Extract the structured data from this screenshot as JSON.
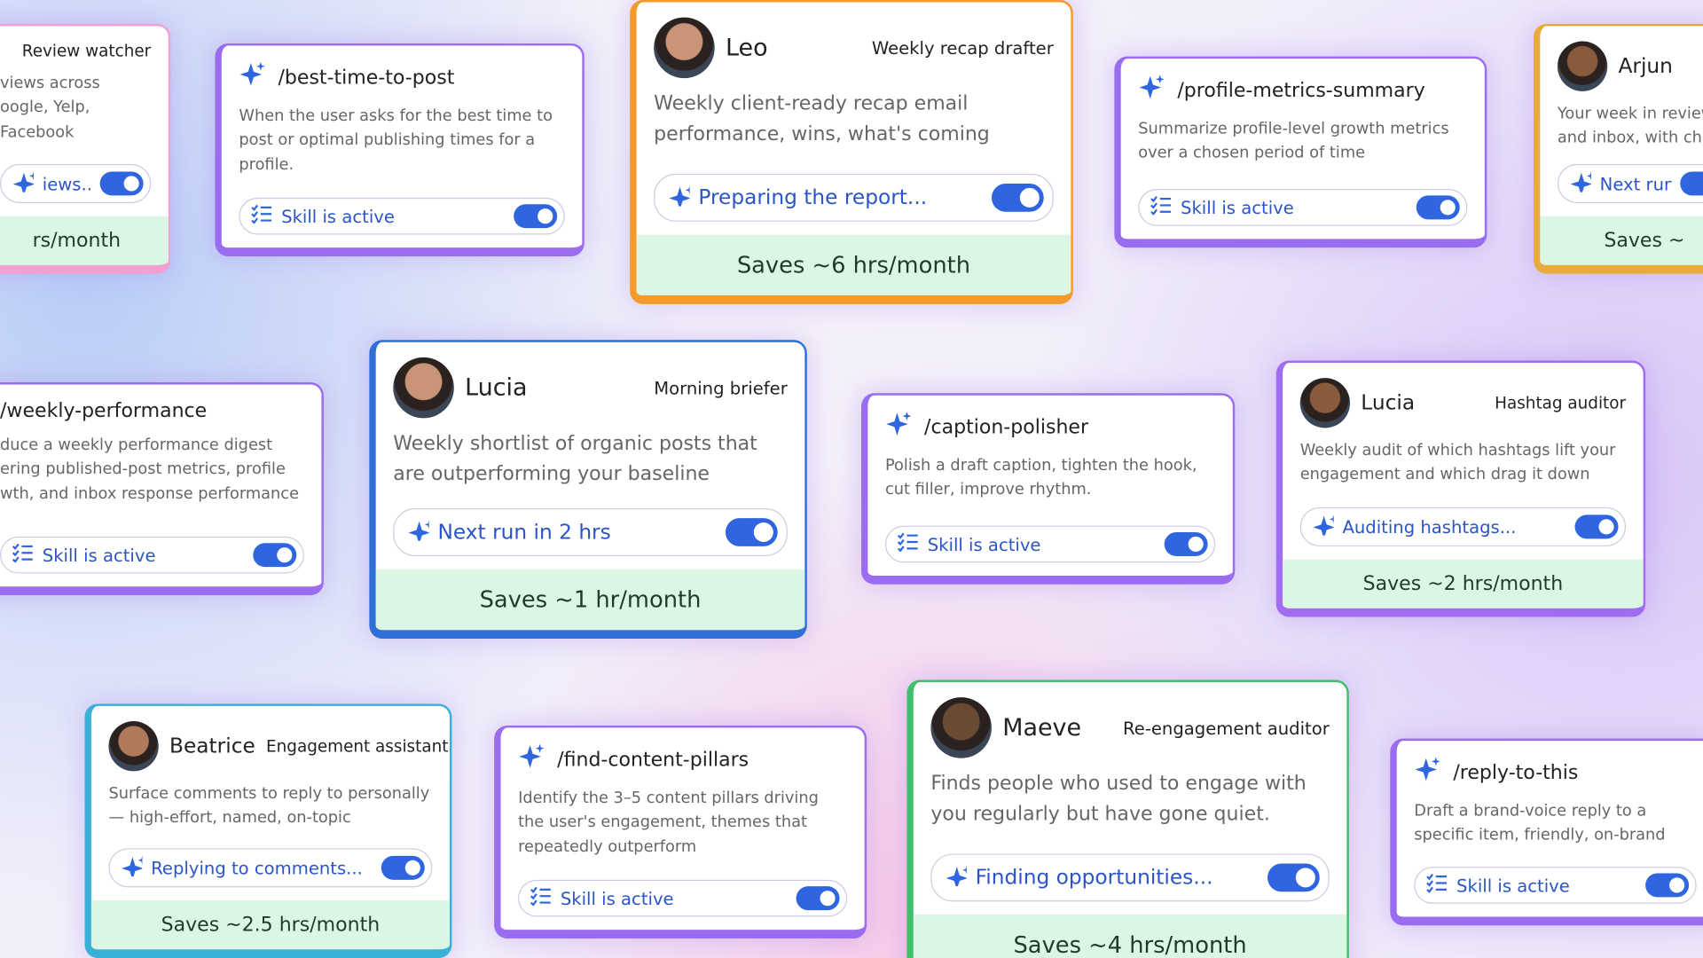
{
  "cards": [
    {
      "role": "Review watcher",
      "description": "views across\noogle, Yelp, Facebook",
      "status": "iews...",
      "savings": "rs/month"
    },
    {
      "command": "/best-time-to-post",
      "description": "When the user asks for the best time to post or optimal publishing times for a profile.",
      "status": "Skill is active"
    },
    {
      "name": "Leo",
      "role": "Weekly recap drafter",
      "description": "Weekly client-ready recap email performance, wins, what's coming",
      "status": "Preparing the report...",
      "savings": "Saves ~6 hrs/month"
    },
    {
      "command": "/profile-metrics-summary",
      "description": "Summarize profile-level growth metrics over a chosen period of time",
      "status": "Skill is active"
    },
    {
      "name": "Arjun",
      "description": "Your week in review\nand inbox, with char",
      "status": "Next run tomo",
      "savings": "Saves ~"
    },
    {
      "command": "/weekly-performance",
      "description": "duce a weekly performance digest\nering published-post metrics, profile\nwth, and inbox response performance",
      "status": "Skill is active"
    },
    {
      "name": "Lucia",
      "role": "Morning briefer",
      "description": "Weekly shortlist of organic posts that are outperforming your baseline",
      "status": "Next run in 2 hrs",
      "savings": "Saves ~1 hr/month"
    },
    {
      "command": "/caption-polisher",
      "description": "Polish a draft caption, tighten the hook, cut filler, improve rhythm.",
      "status": "Skill is active"
    },
    {
      "name": "Lucia",
      "role": "Hashtag auditor",
      "description": "Weekly audit of which hashtags lift your engagement and which drag it down",
      "status": "Auditing hashtags...",
      "savings": "Saves ~2 hrs/month"
    },
    {
      "name": "Beatrice",
      "role": "Engagement assistant",
      "description": "Surface comments to reply to personally — high-effort, named, on-topic",
      "status": "Replying to comments...",
      "savings": "Saves ~2.5 hrs/month"
    },
    {
      "command": "/find-content-pillars",
      "description": "Identify the 3–5 content pillars driving the user's engagement, themes that repeatedly outperform",
      "status": "Skill is active"
    },
    {
      "name": "Maeve",
      "role": "Re-engagement auditor",
      "description": "Finds people who used to engage with you regularly but have gone quiet.",
      "status": "Finding opportunities...",
      "savings": "Saves ~4 hrs/month"
    },
    {
      "command": "/reply-to-this",
      "description": "Draft a brand-voice reply to a specific item, friendly, on-brand",
      "status": "Skill is active"
    }
  ]
}
